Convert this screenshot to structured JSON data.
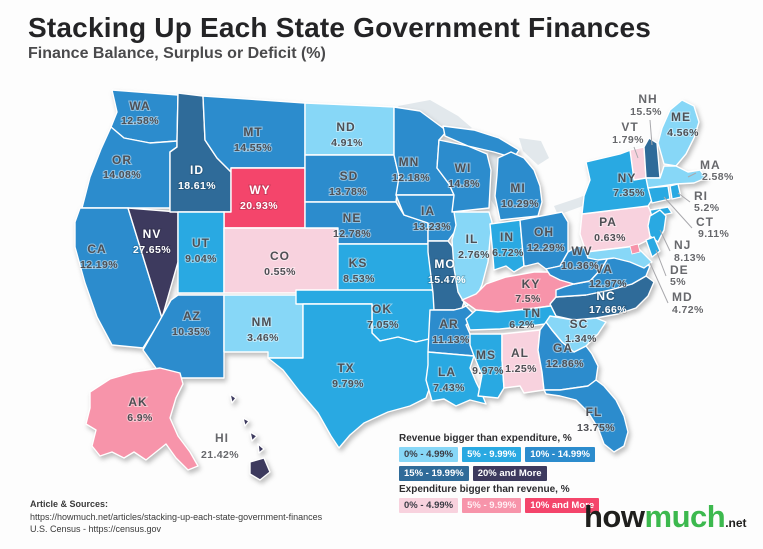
{
  "title": "Stacking Up Each State Government Finances",
  "subtitle": "Finance Balance, Surplus or Deficit (%)",
  "colors": {
    "s0": "#87d7f7",
    "s5": "#29a9e2",
    "s10": "#2c8ccd",
    "s15": "#2f6b99",
    "s20": "#3d3a5e",
    "d0": "#f8d2de",
    "d5": "#f794aa",
    "d10": "#f4456b"
  },
  "legend": {
    "surplus_title": "Revenue bigger than expenditure, %",
    "deficit_title": "Expenditure bigger than revenue, %",
    "surplus": [
      {
        "label": "0% - 4.99%",
        "color": "#87d7f7",
        "text": "#3b3c45"
      },
      {
        "label": "5% - 9.99%",
        "color": "#29a9e2",
        "text": "#ffffff"
      },
      {
        "label": "10% - 14.99%",
        "color": "#2c8ccd",
        "text": "#ffffff"
      },
      {
        "label": "15% - 19.99%",
        "color": "#2f6b99",
        "text": "#ffffff"
      },
      {
        "label": "20% and More",
        "color": "#3d3a5e",
        "text": "#ffffff"
      }
    ],
    "deficit": [
      {
        "label": "0% - 4.99%",
        "color": "#f8d2de",
        "text": "#3b3c45"
      },
      {
        "label": "5% - 9.99%",
        "color": "#f794aa",
        "text": "#ffeef3"
      },
      {
        "label": "10% and More",
        "color": "#f4456b",
        "text": "#ffffff"
      }
    ]
  },
  "states": [
    {
      "abbr": "WA",
      "value": "12.58%",
      "cat": "s10"
    },
    {
      "abbr": "OR",
      "value": "14.08%",
      "cat": "s10"
    },
    {
      "abbr": "CA",
      "value": "12.19%",
      "cat": "s10"
    },
    {
      "abbr": "NV",
      "value": "27.65%",
      "cat": "s20"
    },
    {
      "abbr": "ID",
      "value": "18.61%",
      "cat": "s15"
    },
    {
      "abbr": "MT",
      "value": "14.55%",
      "cat": "s10"
    },
    {
      "abbr": "WY",
      "value": "20.93%",
      "cat": "d10"
    },
    {
      "abbr": "UT",
      "value": "9.04%",
      "cat": "s5"
    },
    {
      "abbr": "CO",
      "value": "0.55%",
      "cat": "d0"
    },
    {
      "abbr": "AZ",
      "value": "10.35%",
      "cat": "s10"
    },
    {
      "abbr": "NM",
      "value": "3.46%",
      "cat": "s0"
    },
    {
      "abbr": "ND",
      "value": "4.91%",
      "cat": "s0"
    },
    {
      "abbr": "SD",
      "value": "13.78%",
      "cat": "s10"
    },
    {
      "abbr": "NE",
      "value": "12.78%",
      "cat": "s10"
    },
    {
      "abbr": "KS",
      "value": "8.53%",
      "cat": "s5"
    },
    {
      "abbr": "OK",
      "value": "7.05%",
      "cat": "s5"
    },
    {
      "abbr": "TX",
      "value": "9.79%",
      "cat": "s5"
    },
    {
      "abbr": "MN",
      "value": "12.18%",
      "cat": "s10"
    },
    {
      "abbr": "IA",
      "value": "13.23%",
      "cat": "s10"
    },
    {
      "abbr": "MO",
      "value": "15.47%",
      "cat": "s15"
    },
    {
      "abbr": "AR",
      "value": "11.13%",
      "cat": "s10"
    },
    {
      "abbr": "LA",
      "value": "7.43%",
      "cat": "s5"
    },
    {
      "abbr": "WI",
      "value": "14.8%",
      "cat": "s10"
    },
    {
      "abbr": "IL",
      "value": "2.76%",
      "cat": "s0"
    },
    {
      "abbr": "MI",
      "value": "10.29%",
      "cat": "s10"
    },
    {
      "abbr": "IN",
      "value": "6.72%",
      "cat": "s5"
    },
    {
      "abbr": "OH",
      "value": "12.29%",
      "cat": "s10"
    },
    {
      "abbr": "KY",
      "value": "7.5%",
      "cat": "d5"
    },
    {
      "abbr": "TN",
      "value": "6.2%",
      "cat": "s5"
    },
    {
      "abbr": "MS",
      "value": "9.97%",
      "cat": "s5"
    },
    {
      "abbr": "AL",
      "value": "1.25%",
      "cat": "d0"
    },
    {
      "abbr": "GA",
      "value": "12.86%",
      "cat": "s10"
    },
    {
      "abbr": "FL",
      "value": "13.75%",
      "cat": "s10"
    },
    {
      "abbr": "SC",
      "value": "1.34%",
      "cat": "s0"
    },
    {
      "abbr": "NC",
      "value": "17.66%",
      "cat": "s15"
    },
    {
      "abbr": "VA",
      "value": "12.97%",
      "cat": "s10"
    },
    {
      "abbr": "WV",
      "value": "10.36%",
      "cat": "s10"
    },
    {
      "abbr": "PA",
      "value": "0.63%",
      "cat": "d0"
    },
    {
      "abbr": "NY",
      "value": "7.35%",
      "cat": "s5"
    },
    {
      "abbr": "VT",
      "value": "1.79%",
      "cat": "d0"
    },
    {
      "abbr": "NH",
      "value": "15.5%",
      "cat": "s15"
    },
    {
      "abbr": "ME",
      "value": "4.56%",
      "cat": "s0"
    },
    {
      "abbr": "MA",
      "value": "2.58%",
      "cat": "s0"
    },
    {
      "abbr": "RI",
      "value": "5.2%",
      "cat": "s5"
    },
    {
      "abbr": "CT",
      "value": "9.11%",
      "cat": "s5"
    },
    {
      "abbr": "NJ",
      "value": "8.13%",
      "cat": "s5"
    },
    {
      "abbr": "DE",
      "value": "5%",
      "cat": "s5"
    },
    {
      "abbr": "MD",
      "value": "4.72%",
      "cat": "s0"
    },
    {
      "abbr": "AK",
      "value": "6.9%",
      "cat": "d5"
    },
    {
      "abbr": "HI",
      "value": "21.42%",
      "cat": "s20"
    }
  ],
  "sources": {
    "heading": "Article & Sources:",
    "line1": "https://howmuch.net/articles/stacking-up-each-state-government-finances",
    "line2": "U.S. Census - https://census.gov"
  },
  "logo": {
    "word1": "how",
    "word2": "much",
    "suffix": ".net"
  },
  "chart_data": {
    "type": "heatmap",
    "title": "Stacking Up Each State Government Finances",
    "subtitle": "Finance Balance, Surplus or Deficit (%)",
    "unit": "%",
    "note": "positive = revenue bigger than expenditure (blues), negative = expenditure bigger than revenue (pinks/reds)",
    "values": {
      "WA": 12.58,
      "OR": 14.08,
      "CA": 12.19,
      "NV": 27.65,
      "ID": 18.61,
      "MT": 14.55,
      "WY": -20.93,
      "UT": 9.04,
      "CO": -0.55,
      "AZ": 10.35,
      "NM": 3.46,
      "ND": 4.91,
      "SD": 13.78,
      "NE": 12.78,
      "KS": 8.53,
      "OK": 7.05,
      "TX": 9.79,
      "MN": 12.18,
      "IA": 13.23,
      "MO": 15.47,
      "AR": 11.13,
      "LA": 7.43,
      "WI": 14.8,
      "IL": 2.76,
      "MI": 10.29,
      "IN": 6.72,
      "OH": 12.29,
      "KY": -7.5,
      "TN": 6.2,
      "MS": 9.97,
      "AL": -1.25,
      "GA": 12.86,
      "FL": 13.75,
      "SC": 1.34,
      "NC": 17.66,
      "VA": 12.97,
      "WV": 10.36,
      "PA": -0.63,
      "NY": 7.35,
      "VT": -1.79,
      "NH": 15.5,
      "ME": 4.56,
      "MA": 2.58,
      "RI": 5.2,
      "CT": 9.11,
      "NJ": 8.13,
      "DE": 5,
      "MD": 4.72,
      "AK": -6.9,
      "HI": 21.42
    }
  }
}
